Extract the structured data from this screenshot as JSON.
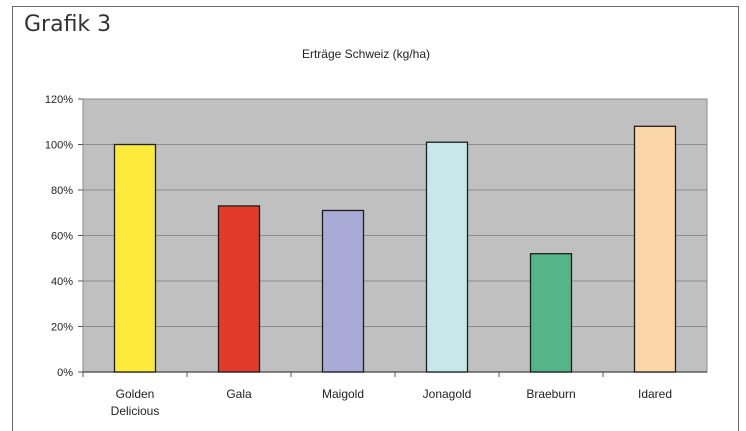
{
  "figure_label": "Grafik 3",
  "chart_data": {
    "type": "bar",
    "title": "Erträge Schweiz (kg/ha)",
    "xlabel": "",
    "ylabel": "",
    "categories": [
      [
        "Golden",
        "Delicious"
      ],
      [
        "Gala"
      ],
      [
        "Maigold"
      ],
      [
        "Jonagold"
      ],
      [
        "Braeburn"
      ],
      [
        "Idared"
      ]
    ],
    "values": [
      100,
      73,
      71,
      101,
      52,
      108
    ],
    "bar_colors": [
      "#fdea3a",
      "#e23a2a",
      "#aaaad6",
      "#c6e8ea",
      "#55b488",
      "#fad6a8"
    ],
    "ylim": [
      0,
      120
    ],
    "yticks": [
      0,
      20,
      40,
      60,
      80,
      100,
      120
    ],
    "ytick_labels": [
      "0%",
      "20%",
      "40%",
      "60%",
      "80%",
      "100%",
      "120%"
    ],
    "grid": true,
    "plot_background": "#c0c0c0",
    "legend": "none"
  }
}
